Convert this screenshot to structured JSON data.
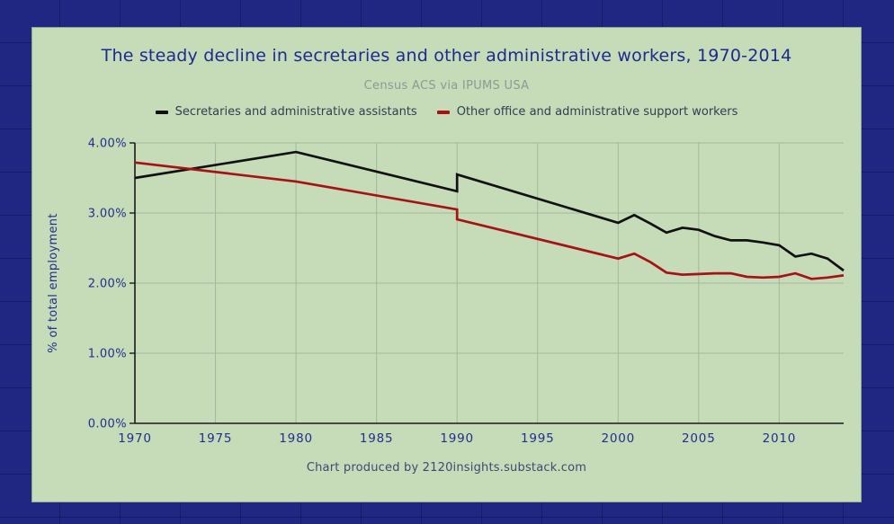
{
  "window": {
    "background_color": "#1f2783",
    "panel_color": "#c6dcb8"
  },
  "header": {
    "title": "The steady decline in secretaries and other administrative workers, 1970-2014",
    "subtitle": "Census ACS via IPUMS USA"
  },
  "legend": [
    {
      "label": "Secretaries and administrative assistants",
      "color": "#111111"
    },
    {
      "label": "Other office and administrative support workers",
      "color": "#a61215"
    }
  ],
  "footer": {
    "credit": "Chart produced by 2120insights.substack.com"
  },
  "chart_data": {
    "type": "line",
    "title": "The steady decline in secretaries and other administrative workers, 1970-2014",
    "subtitle": "Census ACS via IPUMS USA",
    "xlabel": "",
    "ylabel": "% of total employment",
    "xlim": [
      1970,
      2014
    ],
    "ylim": [
      0,
      4
    ],
    "grid": true,
    "legend_position": "top",
    "gridline_color": "#a4b79e",
    "axis_color": "#1a1a1a",
    "tick_label_color": "#232e8d",
    "x_ticks": [
      1970,
      1975,
      1980,
      1985,
      1990,
      1995,
      2000,
      2005,
      2010
    ],
    "y_ticks": [
      0,
      1,
      2,
      3,
      4
    ],
    "y_tick_labels": [
      "0.00%",
      "1.00%",
      "2.00%",
      "3.00%",
      "4.00%"
    ],
    "series": [
      {
        "name": "Secretaries and administrative assistants",
        "color": "#111111",
        "x": [
          1970,
          1980,
          1990,
          1990,
          2000,
          2001,
          2002,
          2003,
          2004,
          2005,
          2006,
          2007,
          2008,
          2009,
          2010,
          2011,
          2012,
          2013,
          2014
        ],
        "values": [
          3.5,
          3.87,
          3.31,
          3.55,
          2.86,
          2.97,
          2.85,
          2.72,
          2.79,
          2.76,
          2.67,
          2.61,
          2.61,
          2.58,
          2.54,
          2.38,
          2.42,
          2.35,
          2.18
        ]
      },
      {
        "name": "Other office and administrative support workers",
        "color": "#a61215",
        "x": [
          1970,
          1980,
          1990,
          1990,
          2000,
          2001,
          2002,
          2003,
          2004,
          2005,
          2006,
          2007,
          2008,
          2009,
          2010,
          2011,
          2012,
          2013,
          2014
        ],
        "values": [
          3.72,
          3.45,
          3.05,
          2.91,
          2.35,
          2.42,
          2.3,
          2.15,
          2.12,
          2.13,
          2.14,
          2.14,
          2.09,
          2.08,
          2.09,
          2.14,
          2.06,
          2.08,
          2.11
        ]
      }
    ]
  }
}
